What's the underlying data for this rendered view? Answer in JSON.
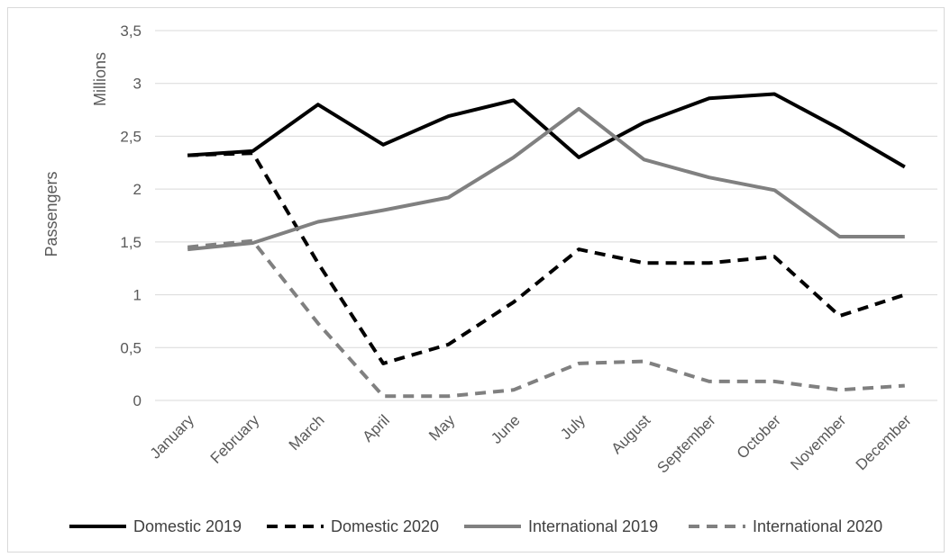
{
  "chart_data": {
    "type": "line",
    "title": "",
    "xlabel": "",
    "ylabel": "Passengers",
    "yunit": "Millions",
    "ylim": [
      0,
      3.5
    ],
    "yticks": [
      "0",
      "0,5",
      "1",
      "1,5",
      "2",
      "2,5",
      "3",
      "3,5"
    ],
    "grid": true,
    "legend_position": "bottom",
    "categories": [
      "January",
      "February",
      "March",
      "April",
      "May",
      "June",
      "July",
      "August",
      "September",
      "October",
      "November",
      "December"
    ],
    "series": [
      {
        "name": "Domestic 2019",
        "color": "#000000",
        "dash": "solid",
        "values": [
          2.32,
          2.36,
          2.8,
          2.42,
          2.69,
          2.84,
          2.3,
          2.63,
          2.86,
          2.9,
          2.57,
          2.21
        ]
      },
      {
        "name": "Domestic 2020",
        "color": "#000000",
        "dash": "dashed",
        "values": [
          2.32,
          2.34,
          1.3,
          0.35,
          0.53,
          0.93,
          1.43,
          1.3,
          1.3,
          1.36,
          0.8,
          1.0
        ]
      },
      {
        "name": "International 2019",
        "color": "#808080",
        "dash": "solid",
        "values": [
          1.43,
          1.49,
          1.69,
          1.8,
          1.92,
          2.3,
          2.76,
          2.28,
          2.11,
          1.99,
          1.55,
          1.55
        ]
      },
      {
        "name": "International 2020",
        "color": "#808080",
        "dash": "dashed",
        "values": [
          1.45,
          1.51,
          0.73,
          0.04,
          0.04,
          0.1,
          0.35,
          0.37,
          0.18,
          0.18,
          0.1,
          0.14
        ]
      }
    ]
  }
}
